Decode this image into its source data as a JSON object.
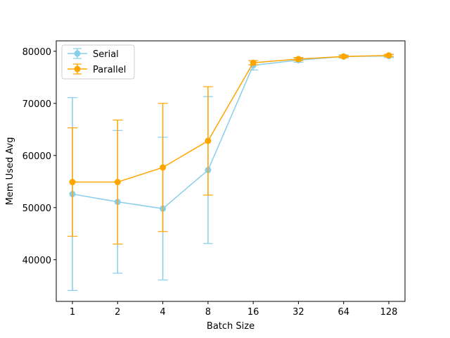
{
  "chart_data": {
    "type": "line",
    "title": "",
    "xlabel": "Batch Size",
    "ylabel": "Mem Used Avg",
    "categories": [
      "1",
      "2",
      "4",
      "8",
      "16",
      "32",
      "64",
      "128"
    ],
    "ylim": [
      32000,
      82000
    ],
    "yticks": [
      40000,
      50000,
      60000,
      70000,
      80000
    ],
    "grid": false,
    "legend_position": "upper-left",
    "series": [
      {
        "name": "Serial",
        "color": "#87ceeb",
        "values": [
          52600,
          51100,
          49800,
          57200,
          77300,
          78300,
          79000,
          79100
        ],
        "errors": [
          18500,
          13700,
          13700,
          14100,
          900,
          400,
          300,
          300
        ]
      },
      {
        "name": "Parallel",
        "color": "#ffa500",
        "values": [
          54900,
          54900,
          57700,
          62800,
          77800,
          78500,
          79000,
          79200
        ],
        "errors": [
          10400,
          11900,
          12300,
          10400,
          400,
          300,
          200,
          200
        ]
      }
    ]
  }
}
